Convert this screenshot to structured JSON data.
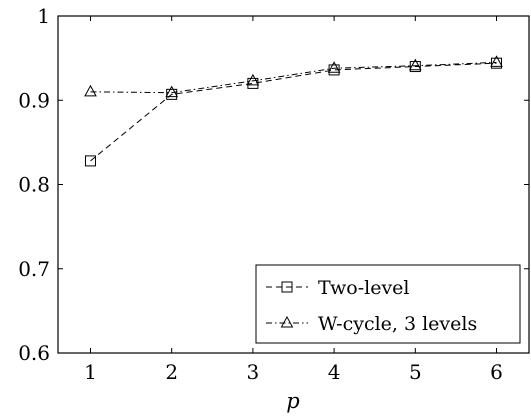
{
  "chart_data": {
    "type": "line",
    "xlabel": "p",
    "ylabel": "",
    "title": "",
    "x": [
      1,
      2,
      3,
      4,
      5,
      6
    ],
    "xlim": [
      0.6,
      6.4
    ],
    "ylim": [
      0.6,
      1.0
    ],
    "xticks": [
      "1",
      "2",
      "3",
      "4",
      "5",
      "6"
    ],
    "yticks": [
      "0.6",
      "0.7",
      "0.8",
      "0.9",
      "1"
    ],
    "yticks_values": [
      0.6,
      0.7,
      0.8,
      0.9,
      1.0
    ],
    "grid": false,
    "legend_position": "bottom-right",
    "series": [
      {
        "name": "Two-level",
        "marker": "square",
        "line_style": "dashed",
        "color": "#000000",
        "values": [
          0.828,
          0.907,
          0.92,
          0.936,
          0.94,
          0.944
        ]
      },
      {
        "name": "W-cycle, 3 levels",
        "marker": "triangle",
        "line_style": "dash-dot",
        "color": "#000000",
        "values": [
          0.91,
          0.909,
          0.923,
          0.938,
          0.941,
          0.945
        ]
      }
    ]
  }
}
